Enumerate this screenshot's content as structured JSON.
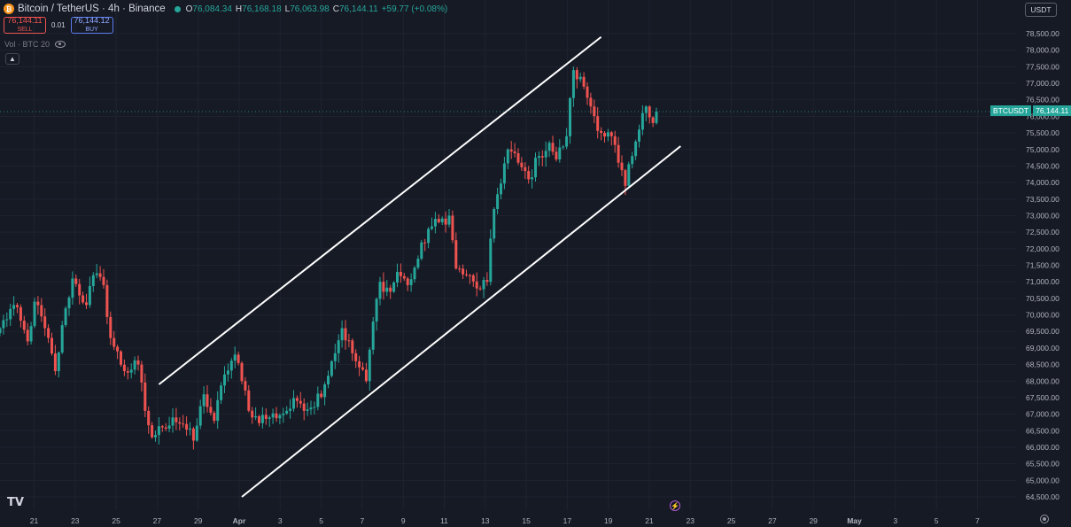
{
  "header": {
    "coin_icon": "bitcoin-icon",
    "symbol_text": "Bitcoin / TetherUS · 4h · Binance",
    "ohlc": [
      {
        "key": "O",
        "value": "76,084.34"
      },
      {
        "key": "H",
        "value": "76,168.18"
      },
      {
        "key": "L",
        "value": "76,063.98"
      },
      {
        "key": "C",
        "value": "76,144.11"
      },
      {
        "key": "",
        "value": "+59.77 (+0.08%)"
      }
    ]
  },
  "trade": {
    "sell_price": "76,144.11",
    "sell_label": "SELL",
    "spread": "0.01",
    "buy_price": "76,144.12",
    "buy_label": "BUY"
  },
  "volume_label": "Vol · BTC 20",
  "currency_select": "USDT",
  "last_price_label": {
    "symbol": "BTCUSDT",
    "value": "76,144.11"
  },
  "colors": {
    "background": "#161a25",
    "up": "#26a69a",
    "down": "#ef5350",
    "channel": "#ffffff",
    "grid": "#1f2330"
  },
  "icons": {
    "logo": "tradingview-logo-icon",
    "bolt": "lightning-icon",
    "settings": "gear-icon"
  },
  "chart_data": {
    "type": "candlestick",
    "x_axis_ticks": [
      "21",
      "23",
      "25",
      "27",
      "29",
      "Apr",
      "3",
      "5",
      "7",
      "9",
      "11",
      "13",
      "15",
      "17",
      "19",
      "21",
      "23",
      "25",
      "27",
      "29",
      "May",
      "3",
      "5",
      "7"
    ],
    "y_axis_ticks": [
      "78,500.00",
      "78,000.00",
      "77,500.00",
      "77,000.00",
      "76,500.00",
      "76,000.00",
      "75,500.00",
      "75,000.00",
      "74,500.00",
      "74,000.00",
      "73,500.00",
      "73,000.00",
      "72,500.00",
      "72,000.00",
      "71,500.00",
      "71,000.00",
      "70,500.00",
      "70,000.00",
      "69,500.00",
      "69,000.00",
      "68,500.00",
      "68,000.00",
      "67,500.00",
      "67,000.00",
      "66,500.00",
      "66,000.00",
      "65,500.00",
      "65,000.00",
      "64,500.00"
    ],
    "ylim": [
      64300,
      78900
    ],
    "last_price": 76144.11,
    "timeframe": "4h",
    "start_date": "2025-03-19",
    "close_anchors": [
      [
        0,
        69600
      ],
      [
        4,
        70300
      ],
      [
        8,
        69200
      ],
      [
        10,
        70400
      ],
      [
        13,
        69600
      ],
      [
        16,
        68300
      ],
      [
        19,
        70200
      ],
      [
        21,
        71100
      ],
      [
        25,
        70300
      ],
      [
        27,
        71200
      ],
      [
        30,
        70900
      ],
      [
        32,
        69300
      ],
      [
        36,
        68300
      ],
      [
        40,
        68500
      ],
      [
        42,
        67100
      ],
      [
        44,
        66300
      ],
      [
        47,
        66600
      ],
      [
        50,
        66900
      ],
      [
        53,
        66700
      ],
      [
        56,
        66200
      ],
      [
        59,
        67600
      ],
      [
        62,
        66800
      ],
      [
        65,
        68200
      ],
      [
        68,
        68800
      ],
      [
        70,
        68000
      ],
      [
        73,
        66900
      ],
      [
        78,
        66900
      ],
      [
        83,
        67100
      ],
      [
        86,
        67400
      ],
      [
        90,
        67200
      ],
      [
        94,
        67900
      ],
      [
        96,
        68600
      ],
      [
        99,
        69600
      ],
      [
        103,
        68600
      ],
      [
        106,
        68000
      ],
      [
        108,
        69800
      ],
      [
        110,
        71000
      ],
      [
        113,
        70700
      ],
      [
        115,
        71300
      ],
      [
        118,
        70900
      ],
      [
        121,
        71700
      ],
      [
        124,
        72600
      ],
      [
        127,
        72800
      ],
      [
        130,
        73000
      ],
      [
        132,
        71400
      ],
      [
        135,
        71200
      ],
      [
        138,
        70800
      ],
      [
        141,
        71000
      ],
      [
        143,
        73200
      ],
      [
        147,
        75000
      ],
      [
        150,
        74600
      ],
      [
        153,
        74100
      ],
      [
        156,
        74800
      ],
      [
        159,
        75200
      ],
      [
        161,
        74700
      ],
      [
        164,
        75400
      ],
      [
        166,
        77400
      ],
      [
        169,
        76900
      ],
      [
        171,
        76300
      ],
      [
        174,
        75500
      ],
      [
        177,
        75400
      ],
      [
        179,
        74600
      ],
      [
        181,
        73900
      ],
      [
        183,
        74800
      ],
      [
        185,
        75600
      ],
      [
        187,
        76300
      ],
      [
        189,
        75800
      ],
      [
        190,
        76144
      ]
    ],
    "channel": {
      "upper": {
        "from": [
          46,
          67900
        ],
        "to": [
          174,
          78400
        ]
      },
      "lower": {
        "from": [
          70,
          64500
        ],
        "to": [
          197,
          75100
        ]
      }
    },
    "annotations": [
      "ascending price channel"
    ]
  }
}
